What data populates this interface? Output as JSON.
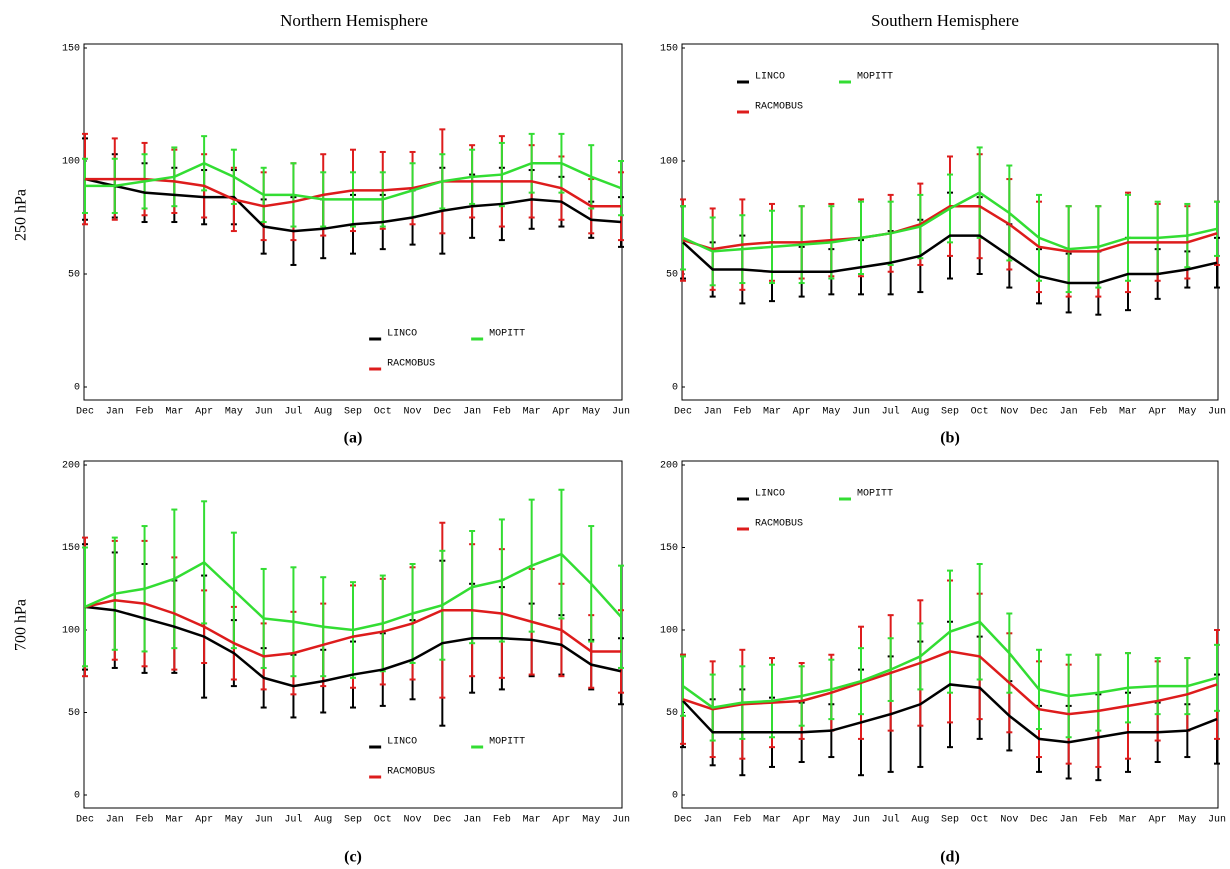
{
  "columns": [
    "Northern Hemisphere",
    "Southern Hemisphere"
  ],
  "rows": [
    "250 hPa",
    "700 hPa"
  ],
  "chart_data": [
    {
      "type": "line",
      "panel_label": "(a)",
      "legend": "lower center",
      "categories": [
        "Dec",
        "Jan",
        "Feb",
        "Mar",
        "Apr",
        "May",
        "Jun",
        "Jul",
        "Aug",
        "Sep",
        "Oct",
        "Nov",
        "Dec",
        "Jan",
        "Feb",
        "Mar",
        "Apr",
        "May",
        "Jun"
      ],
      "ylim": [
        0,
        150
      ],
      "yticks": [
        0,
        50,
        100,
        150
      ],
      "series": [
        {
          "name": "LINCO",
          "color": "#000000",
          "values": [
            92,
            89,
            86,
            85,
            84,
            84,
            71,
            69,
            70,
            72,
            73,
            75,
            78,
            80,
            81,
            83,
            82,
            74,
            73
          ],
          "errors": [
            18,
            14,
            13,
            12,
            12,
            12,
            12,
            15,
            13,
            13,
            12,
            12,
            19,
            14,
            16,
            13,
            11,
            8,
            11
          ]
        },
        {
          "name": "RACMOBUS",
          "color": "#dd1c1c",
          "values": [
            92,
            92,
            92,
            91,
            89,
            83,
            80,
            82,
            85,
            87,
            87,
            88,
            91,
            91,
            91,
            91,
            88,
            80,
            80
          ],
          "errors": [
            20,
            18,
            16,
            14,
            14,
            14,
            15,
            17,
            18,
            18,
            17,
            16,
            23,
            16,
            20,
            16,
            14,
            12,
            15
          ]
        },
        {
          "name": "MOPITT",
          "color": "#33dd33",
          "values": [
            89,
            89,
            91,
            93,
            99,
            93,
            85,
            85,
            83,
            83,
            83,
            87,
            91,
            93,
            94,
            99,
            99,
            93,
            88
          ],
          "errors": [
            12,
            12,
            12,
            13,
            12,
            12,
            12,
            14,
            12,
            12,
            12,
            12,
            12,
            12,
            14,
            13,
            13,
            14,
            12
          ]
        }
      ]
    },
    {
      "type": "line",
      "panel_label": "(b)",
      "legend": "upper left",
      "categories": [
        "Dec",
        "Jan",
        "Feb",
        "Mar",
        "Apr",
        "May",
        "Jun",
        "Jul",
        "Aug",
        "Sep",
        "Oct",
        "Nov",
        "Dec",
        "Jan",
        "Feb",
        "Mar",
        "Apr",
        "May",
        "Jun"
      ],
      "ylim": [
        0,
        150
      ],
      "yticks": [
        0,
        50,
        100,
        150
      ],
      "series": [
        {
          "name": "LINCO",
          "color": "#000000",
          "values": [
            64,
            52,
            52,
            51,
            51,
            51,
            53,
            55,
            58,
            67,
            67,
            58,
            49,
            46,
            46,
            50,
            50,
            52,
            55
          ],
          "errors": [
            16,
            12,
            15,
            13,
            11,
            10,
            12,
            14,
            16,
            19,
            17,
            14,
            12,
            13,
            14,
            16,
            11,
            8,
            11
          ]
        },
        {
          "name": "RACMOBUS",
          "color": "#dd1c1c",
          "values": [
            65,
            61,
            63,
            64,
            64,
            65,
            66,
            68,
            72,
            80,
            80,
            72,
            62,
            60,
            60,
            64,
            64,
            64,
            68
          ],
          "errors": [
            18,
            18,
            20,
            17,
            16,
            16,
            17,
            17,
            18,
            22,
            23,
            20,
            20,
            20,
            20,
            22,
            17,
            16,
            14
          ]
        },
        {
          "name": "MOPITT",
          "color": "#33dd33",
          "values": [
            66,
            60,
            61,
            62,
            63,
            64,
            66,
            68,
            71,
            79,
            86,
            77,
            66,
            61,
            62,
            66,
            66,
            67,
            70
          ],
          "errors": [
            14,
            15,
            15,
            16,
            17,
            16,
            16,
            14,
            14,
            15,
            20,
            21,
            19,
            19,
            18,
            19,
            16,
            14,
            12
          ]
        }
      ]
    },
    {
      "type": "line",
      "panel_label": "(c)",
      "legend": "lower center",
      "categories": [
        "Dec",
        "Jan",
        "Feb",
        "Mar",
        "Apr",
        "May",
        "Jun",
        "Jul",
        "Aug",
        "Sep",
        "Oct",
        "Nov",
        "Dec",
        "Jan",
        "Feb",
        "Mar",
        "Apr",
        "May",
        "Jun"
      ],
      "ylim": [
        0,
        200
      ],
      "yticks": [
        0,
        50,
        100,
        150,
        200
      ],
      "series": [
        {
          "name": "LINCO",
          "color": "#000000",
          "values": [
            114,
            112,
            107,
            102,
            96,
            86,
            71,
            66,
            69,
            73,
            76,
            82,
            92,
            95,
            95,
            94,
            91,
            79,
            75
          ],
          "errors": [
            38,
            35,
            33,
            28,
            37,
            20,
            18,
            19,
            19,
            20,
            22,
            24,
            50,
            33,
            31,
            22,
            18,
            15,
            20
          ]
        },
        {
          "name": "RACMOBUS",
          "color": "#dd1c1c",
          "values": [
            114,
            118,
            116,
            110,
            102,
            92,
            84,
            86,
            91,
            96,
            99,
            104,
            112,
            112,
            110,
            105,
            100,
            87,
            87
          ],
          "errors": [
            42,
            36,
            38,
            34,
            22,
            22,
            20,
            25,
            25,
            31,
            32,
            34,
            53,
            40,
            39,
            32,
            28,
            22,
            25
          ]
        },
        {
          "name": "MOPITT",
          "color": "#33dd33",
          "values": [
            114,
            122,
            125,
            131,
            141,
            124,
            107,
            105,
            102,
            100,
            104,
            110,
            115,
            126,
            130,
            139,
            146,
            128,
            108
          ],
          "errors": [
            36,
            34,
            38,
            42,
            37,
            35,
            30,
            33,
            30,
            29,
            29,
            30,
            33,
            34,
            37,
            40,
            39,
            35,
            31
          ]
        }
      ]
    },
    {
      "type": "line",
      "panel_label": "(d)",
      "legend": "upper left",
      "categories": [
        "Dec",
        "Jan",
        "Feb",
        "Mar",
        "Apr",
        "May",
        "Jun",
        "Jul",
        "Aug",
        "Sep",
        "Oct",
        "Nov",
        "Dec",
        "Jan",
        "Feb",
        "Mar",
        "Apr",
        "May",
        "Jun"
      ],
      "ylim": [
        0,
        200
      ],
      "yticks": [
        0,
        50,
        100,
        150,
        200
      ],
      "series": [
        {
          "name": "LINCO",
          "color": "#000000",
          "values": [
            57,
            38,
            38,
            38,
            38,
            39,
            44,
            49,
            55,
            67,
            65,
            48,
            34,
            32,
            35,
            38,
            38,
            39,
            46
          ],
          "errors": [
            28,
            20,
            26,
            21,
            18,
            16,
            32,
            35,
            38,
            38,
            31,
            21,
            20,
            22,
            26,
            24,
            18,
            16,
            27
          ]
        },
        {
          "name": "RACMOBUS",
          "color": "#dd1c1c",
          "values": [
            58,
            52,
            55,
            56,
            57,
            62,
            68,
            74,
            80,
            87,
            84,
            68,
            52,
            49,
            51,
            54,
            57,
            61,
            67
          ],
          "errors": [
            27,
            29,
            33,
            27,
            23,
            23,
            34,
            35,
            38,
            43,
            38,
            30,
            29,
            30,
            34,
            32,
            24,
            22,
            33
          ]
        },
        {
          "name": "MOPITT",
          "color": "#33dd33",
          "values": [
            66,
            53,
            56,
            57,
            60,
            64,
            69,
            76,
            84,
            99,
            105,
            86,
            64,
            60,
            62,
            65,
            66,
            66,
            71
          ],
          "errors": [
            18,
            20,
            22,
            22,
            18,
            18,
            20,
            19,
            20,
            37,
            35,
            24,
            24,
            25,
            23,
            21,
            17,
            17,
            20
          ]
        }
      ]
    }
  ]
}
